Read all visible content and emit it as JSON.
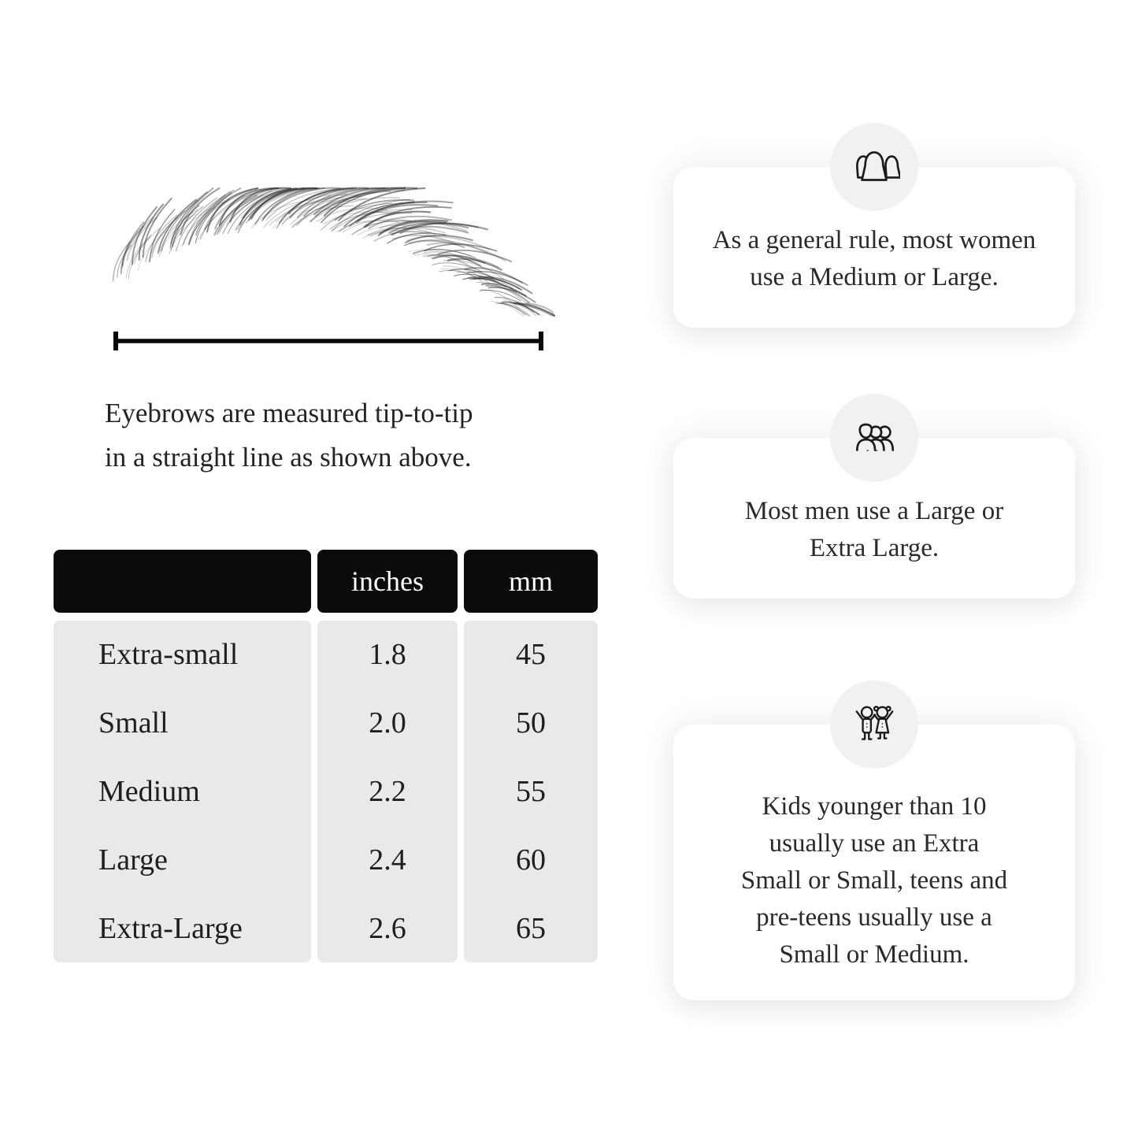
{
  "diagram": {
    "caption_lines": [
      "Eyebrows are measured tip-to-tip",
      "in a straight line as shown above."
    ],
    "eyebrow_color": "#2e2e2e",
    "line_color": "#0a0a0a"
  },
  "table": {
    "headers": [
      "",
      "inches",
      "mm"
    ],
    "rows": [
      {
        "label": "Extra-small",
        "inches": "1.8",
        "mm": "45"
      },
      {
        "label": "Small",
        "inches": "2.0",
        "mm": "50"
      },
      {
        "label": "Medium",
        "inches": "2.2",
        "mm": "55"
      },
      {
        "label": "Large",
        "inches": "2.4",
        "mm": "60"
      },
      {
        "label": "Extra-Large",
        "inches": "2.6",
        "mm": "65"
      }
    ],
    "header_bg": "#0b0b0b",
    "header_text_color": "#ffffff",
    "body_bg": "#e9e9e9"
  },
  "cards": [
    {
      "icon": "women-group-icon",
      "lines": [
        "As a general rule, most women",
        "use a Medium or Large."
      ]
    },
    {
      "icon": "men-group-icon",
      "lines": [
        "Most men use a Large or",
        "Extra Large."
      ]
    },
    {
      "icon": "kids-icon",
      "lines": [
        "Kids younger than 10",
        "usually use an Extra",
        "Small or Small, teens and",
        "pre-teens usually use a",
        "Small or Medium."
      ]
    }
  ],
  "icon_circle_bg": "#f1f1f1"
}
